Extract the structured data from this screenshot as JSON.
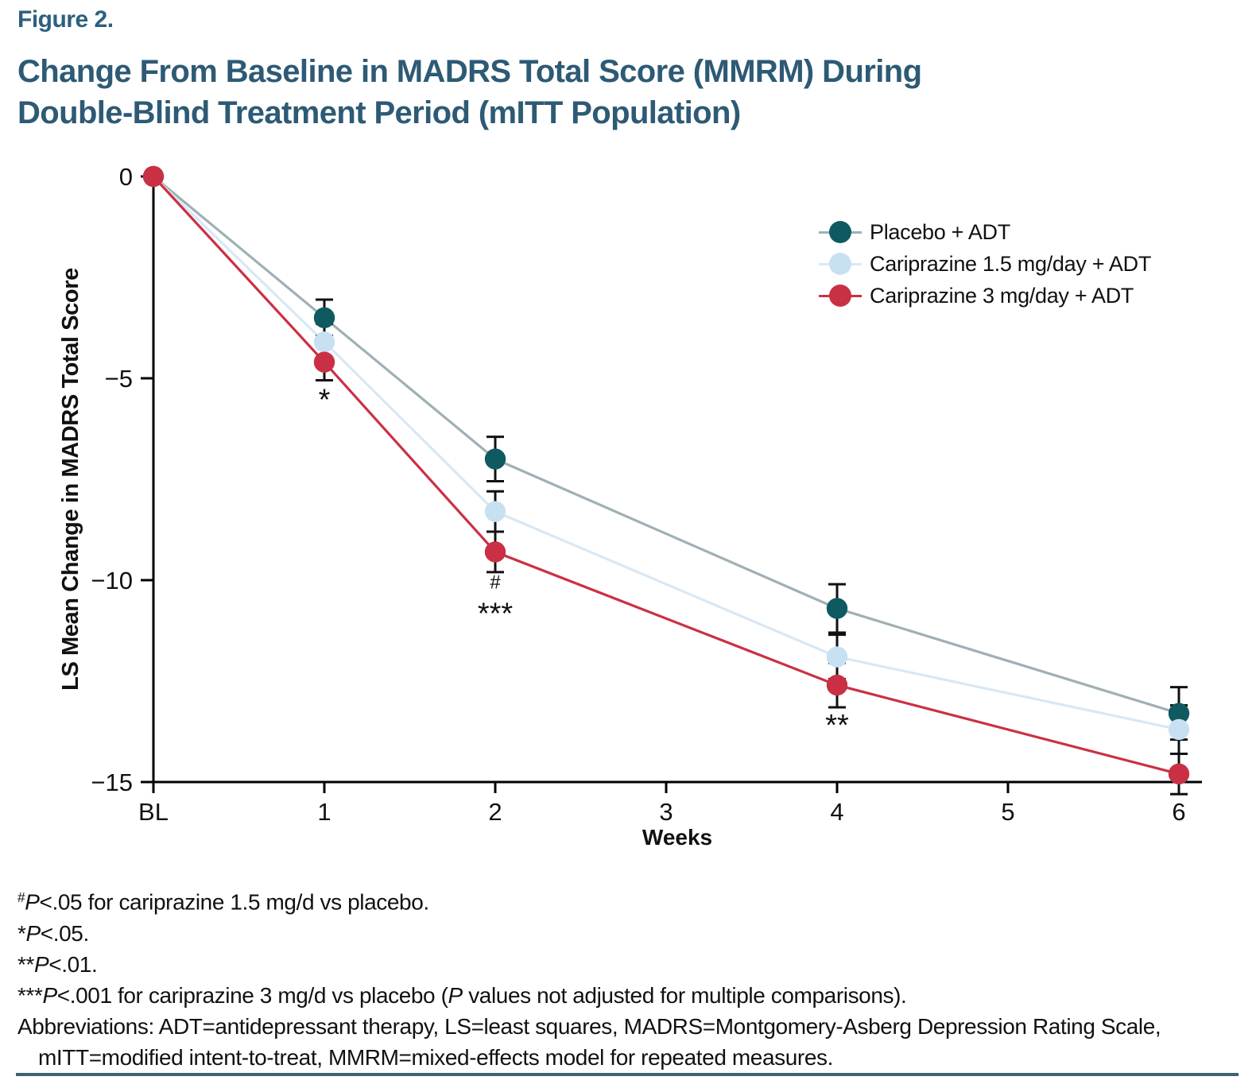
{
  "header": {
    "figure_label": "Figure 2.",
    "title_line1": "Change From Baseline in MADRS Total Score (MMRM) During",
    "title_line2": "Double-Blind Treatment Period (mITT Population)"
  },
  "colors": {
    "figure_label": "#2e5f7e",
    "title": "#2d5a75",
    "axis": "#000000",
    "error_bar": "#111111",
    "annotation": "#111111",
    "bottom_rule": "#3e6173"
  },
  "chart_data": {
    "type": "line",
    "title": "Change From Baseline in MADRS Total Score (MMRM) During Double-Blind Treatment Period (mITT Population)",
    "xlabel": "Weeks",
    "ylabel": "LS Mean Change in MADRS Total Score",
    "x_tick_labels": [
      "BL",
      "1",
      "2",
      "3",
      "4",
      "5",
      "6"
    ],
    "x_weeks": [
      0,
      1,
      2,
      4,
      6
    ],
    "ylim": [
      -15,
      0
    ],
    "y_ticks": [
      0,
      -5,
      -10,
      -15
    ],
    "y_tick_labels": [
      "0",
      "−5",
      "−10",
      "−15"
    ],
    "grid": false,
    "legend_position": "upper right",
    "series": [
      {
        "name": "Placebo + ADT",
        "color": "#0e5a60",
        "line_color": "#9fb0b5",
        "values": [
          0,
          -3.5,
          -7.0,
          -10.7,
          -13.3
        ],
        "errors": [
          0,
          0.45,
          0.55,
          0.6,
          0.65
        ]
      },
      {
        "name": "Cariprazine 1.5 mg/day + ADT",
        "color": "#c8e1f2",
        "line_color": "#d8e8f5",
        "values": [
          0,
          -4.1,
          -8.3,
          -11.9,
          -13.7
        ],
        "errors": [
          0,
          0.45,
          0.5,
          0.55,
          0.6
        ]
      },
      {
        "name": "Cariprazine 3 mg/day + ADT",
        "color": "#c93044",
        "line_color": "#cb3044",
        "values": [
          0,
          -4.6,
          -9.3,
          -12.6,
          -14.8
        ],
        "errors": [
          0,
          0.45,
          0.5,
          0.55,
          0.5
        ]
      }
    ],
    "annotations": [
      {
        "week": 1,
        "symbols": [
          {
            "text": "*",
            "size": 38,
            "dy": 60
          }
        ]
      },
      {
        "week": 2,
        "symbols": [
          {
            "text": "#",
            "size": 24,
            "dy": 46
          },
          {
            "text": "***",
            "size": 38,
            "dy": 90
          }
        ]
      },
      {
        "week": 4,
        "symbols": [
          {
            "text": "**",
            "size": 38,
            "dy": 63
          }
        ]
      }
    ]
  },
  "footnotes": {
    "lines": [
      {
        "parts": [
          {
            "text": "#",
            "sup": true
          },
          {
            "text": "P",
            "italic": true
          },
          {
            "text": "<.05 for cariprazine 1.5 mg/d vs placebo."
          }
        ]
      },
      {
        "parts": [
          {
            "text": "*"
          },
          {
            "text": "P",
            "italic": true
          },
          {
            "text": "<.05."
          }
        ]
      },
      {
        "parts": [
          {
            "text": "**"
          },
          {
            "text": "P",
            "italic": true
          },
          {
            "text": "<.01."
          }
        ]
      },
      {
        "parts": [
          {
            "text": "***"
          },
          {
            "text": "P",
            "italic": true
          },
          {
            "text": "<.001 for cariprazine 3 mg/d vs placebo ("
          },
          {
            "text": "P",
            "italic": true
          },
          {
            "text": " values not adjusted for multiple comparisons)."
          }
        ]
      },
      {
        "parts": [
          {
            "text": "Abbreviations: ADT=antidepressant therapy, LS=least squares, MADRS=Montgomery-Asberg Depression Rating Scale,"
          }
        ]
      },
      {
        "indent": true,
        "parts": [
          {
            "text": "mITT=modified intent-to-treat, MMRM=mixed-effects model for repeated measures."
          }
        ]
      }
    ]
  }
}
